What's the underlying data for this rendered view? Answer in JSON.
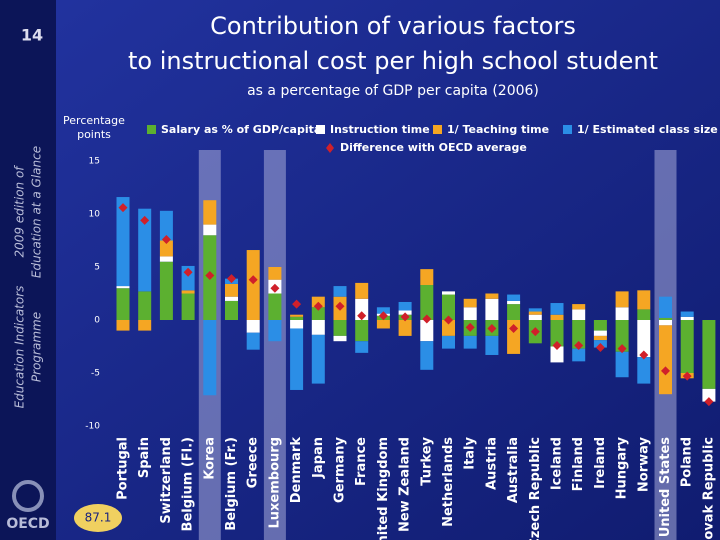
{
  "side_number": "14",
  "side_text": [
    "2009 edition of",
    "Education at a Glance",
    "Education Indicators",
    "Programme"
  ],
  "logo": "OECD",
  "chart_data": {
    "type": "bar",
    "title": [
      "Contribution of various factors",
      "to instructional cost per high school student"
    ],
    "subtitle": "as a percentage of GDP per capita (2006)",
    "y_axis_label": [
      "Percentage",
      "points"
    ],
    "annotation": "87.1",
    "categories": [
      "Portugal",
      "Spain",
      "Switzerland",
      "Belgium (Fl.)",
      "Korea",
      "Belgium (Fr.)",
      "Greece",
      "Luxembourg",
      "Denmark",
      "Japan",
      "Germany",
      "France",
      "United Kingdom",
      "New Zealand",
      "Turkey",
      "Netherlands",
      "Italy",
      "Austria",
      "Australia",
      "Czech Republic",
      "Iceland",
      "Finland",
      "Ireland",
      "Hungary",
      "Norway",
      "United States",
      "Poland",
      "Slovak Republic"
    ],
    "highlight": [
      4,
      7,
      25
    ],
    "series": [
      {
        "name": "Salary as % of GDP/capita",
        "color": "#5cb030",
        "values": [
          3,
          2.7,
          5.5,
          2.5,
          8,
          1.8,
          0,
          2.5,
          0.3,
          1.2,
          -1.5,
          -2,
          0.4,
          0.5,
          3.3,
          2.4,
          -1.5,
          -1.5,
          1.5,
          -2.2,
          -2.5,
          -2.7,
          -1,
          -3,
          1,
          0.2,
          -5,
          -6.5
        ]
      },
      {
        "name": "Instruction time",
        "color": "#ffffff",
        "values": [
          0.2,
          0,
          0.5,
          0,
          1,
          0.4,
          -1.2,
          1.3,
          -0.8,
          -1.4,
          -0.5,
          2,
          0.2,
          0.4,
          -2,
          0.3,
          1.2,
          2,
          0.3,
          0.5,
          -1.5,
          1,
          -0.5,
          1.2,
          -3.5,
          -0.5,
          0.3,
          -1.2
        ]
      },
      {
        "name": "1/ Teaching time",
        "color": "#f5a623",
        "values": [
          -1,
          -1,
          1.5,
          0.3,
          2.3,
          1.2,
          6.6,
          1.2,
          0.2,
          1,
          2.2,
          1.5,
          -0.8,
          -1.5,
          1.5,
          -1.5,
          0.8,
          0.5,
          -3.2,
          0.3,
          0.5,
          0.5,
          -0.4,
          1.5,
          1.8,
          -6.5,
          -0.5,
          0
        ]
      },
      {
        "name": "1/ Estimated class size",
        "color": "#2b8ee6",
        "values": [
          8.4,
          7.8,
          2.8,
          2.3,
          -7.1,
          0.5,
          -1.6,
          -2,
          -5.8,
          -4.6,
          1,
          -1.1,
          0.6,
          0.8,
          -2.7,
          -1.2,
          -1.2,
          -1.8,
          0.6,
          0.3,
          1.1,
          -1.2,
          -0.7,
          -2.4,
          -2.5,
          2,
          0.5,
          0
        ]
      },
      {
        "name": "Difference with OECD average",
        "color": "#d0202a",
        "marker": "diamond",
        "values": [
          10.6,
          9.4,
          7.6,
          4.5,
          4.2,
          3.9,
          3.8,
          3,
          1.5,
          1.3,
          1.3,
          0.4,
          0.4,
          0.3,
          0.1,
          0,
          -0.7,
          -0.8,
          -0.8,
          -1.1,
          -2.4,
          -2.4,
          -2.6,
          -2.7,
          -3.3,
          -4.8,
          -5.3,
          -7.7
        ]
      }
    ],
    "ylim": [
      -10,
      15
    ],
    "yticks": [
      -10,
      -5,
      0,
      5,
      10,
      15
    ]
  }
}
